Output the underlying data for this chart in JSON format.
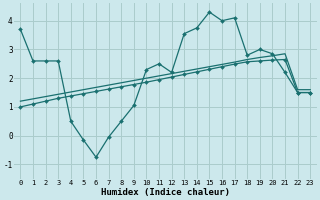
{
  "xlabel": "Humidex (Indice chaleur)",
  "background_color": "#cce8ec",
  "grid_color": "#aacccc",
  "line_color": "#1a7070",
  "xlim": [
    -0.5,
    23.5
  ],
  "ylim": [
    -1.5,
    4.6
  ],
  "yticks": [
    -1,
    0,
    1,
    2,
    3,
    4
  ],
  "xticks": [
    0,
    1,
    2,
    3,
    4,
    5,
    6,
    7,
    8,
    9,
    10,
    11,
    12,
    13,
    14,
    15,
    16,
    17,
    18,
    19,
    20,
    21,
    22,
    23
  ],
  "line1_x": [
    0,
    1,
    2,
    3,
    4,
    5,
    6,
    7,
    8,
    9,
    10,
    11,
    12,
    13,
    14,
    15,
    16,
    17,
    18,
    19,
    20,
    21,
    22,
    23
  ],
  "line1_y": [
    3.7,
    2.6,
    2.6,
    2.6,
    0.5,
    -0.15,
    -0.75,
    -0.05,
    0.5,
    1.05,
    2.3,
    2.5,
    2.2,
    3.55,
    3.75,
    4.3,
    4.0,
    4.1,
    2.8,
    3.0,
    2.85,
    2.2,
    1.5,
    1.5
  ],
  "line2_x": [
    0,
    1,
    2,
    3,
    4,
    5,
    6,
    7,
    8,
    9,
    10,
    11,
    12,
    13,
    14,
    15,
    16,
    17,
    18,
    19,
    20,
    21,
    22,
    23
  ],
  "line2_y": [
    1.0,
    1.1,
    1.2,
    1.3,
    1.38,
    1.46,
    1.54,
    1.62,
    1.7,
    1.78,
    1.86,
    1.95,
    2.04,
    2.13,
    2.22,
    2.31,
    2.4,
    2.49,
    2.57,
    2.6,
    2.63,
    2.65,
    1.5,
    1.5
  ],
  "line3_x": [
    0,
    1,
    2,
    3,
    4,
    5,
    6,
    7,
    8,
    9,
    10,
    11,
    12,
    13,
    14,
    15,
    16,
    17,
    18,
    19,
    20,
    21,
    22,
    23
  ],
  "line3_y": [
    1.2,
    1.28,
    1.36,
    1.44,
    1.52,
    1.6,
    1.68,
    1.76,
    1.84,
    1.92,
    2.0,
    2.08,
    2.16,
    2.24,
    2.32,
    2.4,
    2.48,
    2.56,
    2.65,
    2.72,
    2.78,
    2.85,
    1.6,
    1.6
  ]
}
